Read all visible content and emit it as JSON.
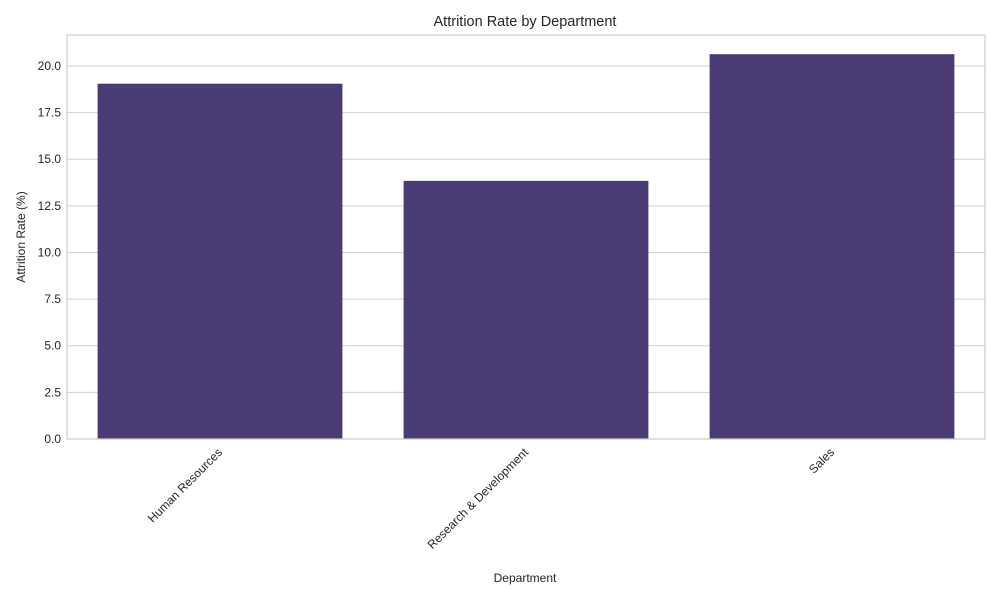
{
  "chart_data": {
    "type": "bar",
    "title": "Attrition Rate by Department",
    "xlabel": "Department",
    "ylabel": "Attrition Rate (%)",
    "categories": [
      "Human Resources",
      "Research & Development",
      "Sales"
    ],
    "values": [
      19.05,
      13.84,
      20.63
    ],
    "ylim": [
      0,
      21.66
    ],
    "yticks": [
      "0.0",
      "2.5",
      "5.0",
      "7.5",
      "10.0",
      "12.5",
      "15.0",
      "17.5",
      "20.0"
    ],
    "grid": true,
    "bar_color": "#4a3b75",
    "grid_color": "#d0d0d0",
    "spine_color": "#cccccc"
  }
}
